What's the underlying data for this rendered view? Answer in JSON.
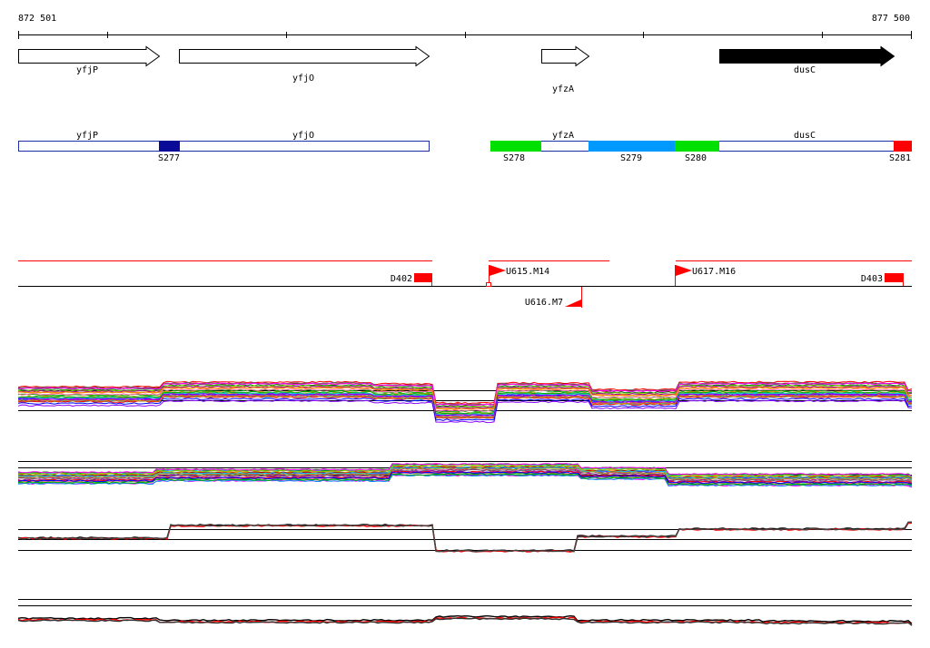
{
  "coordinates": {
    "start": "872 501",
    "end": "877 500"
  },
  "genes": [
    {
      "name": "yfjP",
      "fill": "#ffffff"
    },
    {
      "name": "yfjO",
      "fill": "#ffffff"
    },
    {
      "name": "yfzA",
      "fill": "#ffffff"
    },
    {
      "name": "dusC",
      "fill": "#000000"
    }
  ],
  "segment_labels": [
    "S277",
    "S278",
    "S279",
    "S280",
    "S281"
  ],
  "track_gene_labels": [
    "yfjP",
    "yfjO",
    "yfzA",
    "dusC"
  ],
  "features": [
    "D402",
    "U615.M14",
    "U617.M16",
    "D403",
    "U616.M7"
  ],
  "colors": {
    "segment_green": "#00e000",
    "segment_blue": "#0099ff",
    "segment_navy": "#0a0a99",
    "segment_red": "#ff0000",
    "track_outline": "#1c2fa8",
    "marker_red": "#ff0000"
  }
}
